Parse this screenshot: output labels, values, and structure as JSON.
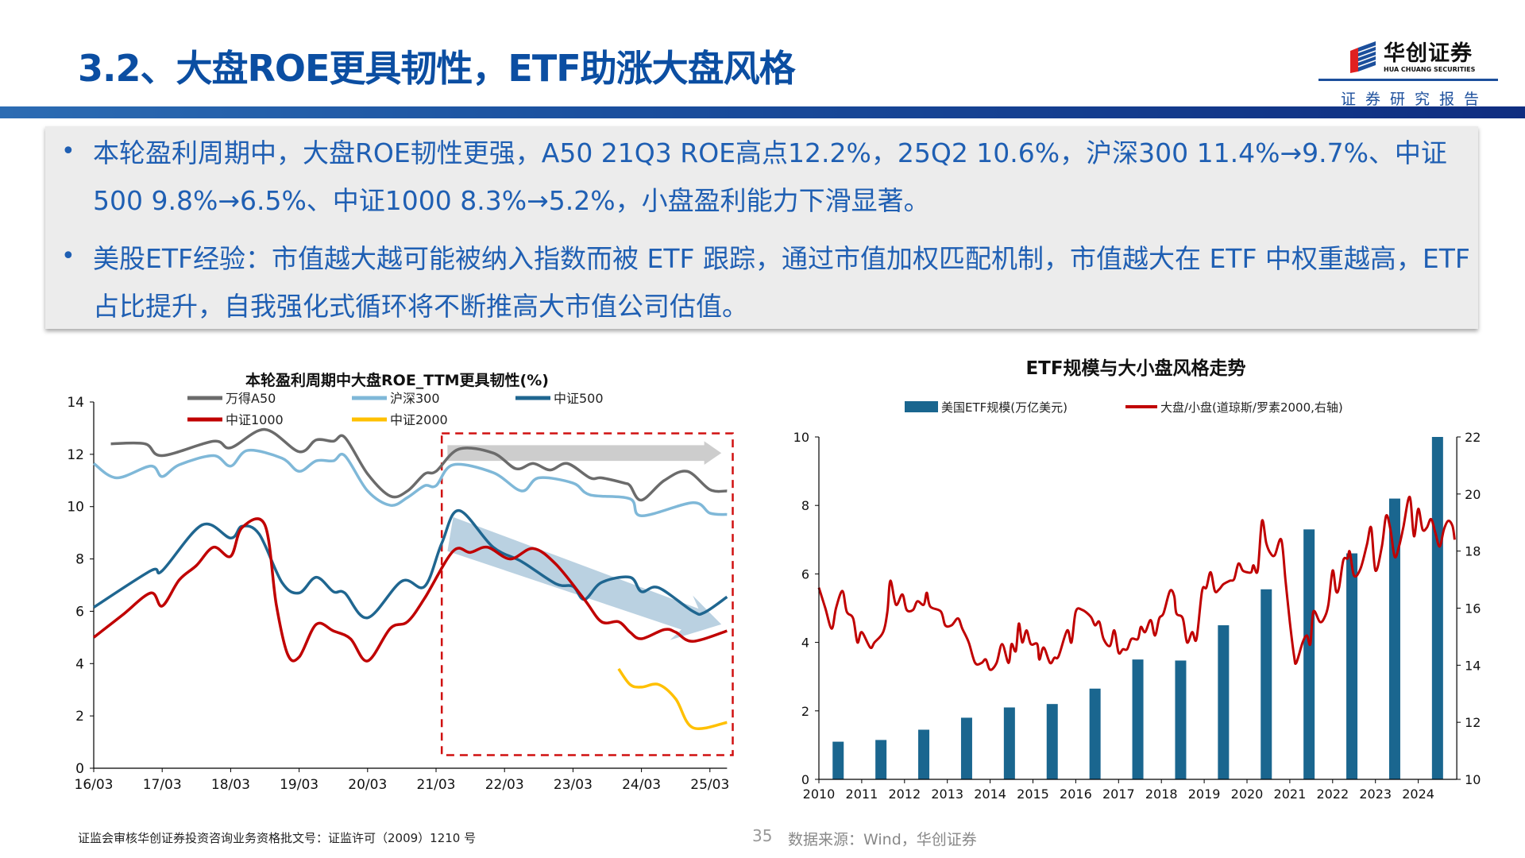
{
  "header": {
    "title": "3.2、大盘ROE更具韧性，ETF助涨大盘风格",
    "logo_cn": "华创证券",
    "logo_en": "HUA CHUANG SECURITIES",
    "report_label": "证券研究报告"
  },
  "summary": {
    "bullets": [
      "本轮盈利周期中，大盘ROE韧性更强，A50 21Q3 ROE高点12.2%，25Q2 10.6%，沪深300 11.4%→9.7%、中证500 9.8%→6.5%、中证1000 8.3%→5.2%，小盘盈利能力下滑显著。",
      "美股ETF经验：市值越大越可能被纳入指数而被 ETF 跟踪，通过市值加权匹配机制，市值越大在 ETF 中权重越高，ETF占比提升，自我强化式循环将不断推高大市值公司估值。"
    ]
  },
  "chart_data": [
    {
      "type": "line",
      "title": "本轮盈利周期中大盘ROE_TTM更具韧性(%)",
      "xlabel": "",
      "ylabel": "",
      "ylim": [
        0,
        14
      ],
      "yticks": [
        "0",
        "2",
        "4",
        "6",
        "8",
        "10",
        "12",
        "14"
      ],
      "xticks": [
        "16/03",
        "17/03",
        "18/03",
        "19/03",
        "20/03",
        "21/03",
        "22/03",
        "23/03",
        "24/03",
        "25/03"
      ],
      "xlim": [
        "2016-03",
        "2025-06"
      ],
      "grid": false,
      "legend": "top",
      "series": [
        {
          "name": "万得A50",
          "color": "#6b6b6b",
          "points": [
            [
              "2016-06",
              12.4
            ],
            [
              "2016-12",
              12.4
            ],
            [
              "2017-03",
              11.95
            ],
            [
              "2017-12",
              12.5
            ],
            [
              "2018-03",
              12.25
            ],
            [
              "2018-09",
              12.95
            ],
            [
              "2019-03",
              12.1
            ],
            [
              "2019-06",
              12.55
            ],
            [
              "2019-09",
              12.5
            ],
            [
              "2019-11",
              12.65
            ],
            [
              "2020-03",
              11.25
            ],
            [
              "2020-07",
              10.4
            ],
            [
              "2020-10",
              10.6
            ],
            [
              "2021-01",
              11.25
            ],
            [
              "2021-03",
              11.35
            ],
            [
              "2021-07",
              12.2
            ],
            [
              "2022-01",
              12.05
            ],
            [
              "2022-05",
              11.45
            ],
            [
              "2022-08",
              11.65
            ],
            [
              "2022-11",
              11.4
            ],
            [
              "2023-02",
              11.65
            ],
            [
              "2023-06",
              11.1
            ],
            [
              "2023-08",
              11.1
            ],
            [
              "2023-12",
              10.9
            ],
            [
              "2024-01",
              10.8
            ],
            [
              "2024-03",
              10.25
            ],
            [
              "2024-07",
              11.0
            ],
            [
              "2024-11",
              11.35
            ],
            [
              "2025-03",
              10.65
            ],
            [
              "2025-06",
              10.6
            ]
          ]
        },
        {
          "name": "沪深300",
          "color": "#7fb8d8",
          "points": [
            [
              "2016-03",
              11.65
            ],
            [
              "2016-07",
              11.1
            ],
            [
              "2017-01",
              11.55
            ],
            [
              "2017-03",
              11.15
            ],
            [
              "2017-06",
              11.6
            ],
            [
              "2017-12",
              11.95
            ],
            [
              "2018-03",
              11.55
            ],
            [
              "2018-06",
              12.15
            ],
            [
              "2018-12",
              11.85
            ],
            [
              "2019-03",
              11.35
            ],
            [
              "2019-06",
              11.75
            ],
            [
              "2019-09",
              11.75
            ],
            [
              "2019-11",
              11.95
            ],
            [
              "2020-03",
              10.6
            ],
            [
              "2020-07",
              10.05
            ],
            [
              "2020-10",
              10.35
            ],
            [
              "2021-01",
              10.8
            ],
            [
              "2021-03",
              10.8
            ],
            [
              "2021-06",
              11.6
            ],
            [
              "2022-01",
              11.3
            ],
            [
              "2022-06",
              10.6
            ],
            [
              "2022-09",
              11.1
            ],
            [
              "2023-03",
              10.9
            ],
            [
              "2023-06",
              10.45
            ],
            [
              "2024-01",
              10.3
            ],
            [
              "2024-03",
              9.65
            ],
            [
              "2024-12",
              10.15
            ],
            [
              "2025-03",
              9.75
            ],
            [
              "2025-06",
              9.7
            ]
          ]
        },
        {
          "name": "中证500",
          "color": "#1f6690",
          "points": [
            [
              "2016-03",
              6.15
            ],
            [
              "2017-01",
              7.55
            ],
            [
              "2017-03",
              7.55
            ],
            [
              "2017-10",
              9.3
            ],
            [
              "2018-03",
              8.8
            ],
            [
              "2018-05",
              9.25
            ],
            [
              "2018-08",
              8.95
            ],
            [
              "2018-12",
              7.1
            ],
            [
              "2019-03",
              6.7
            ],
            [
              "2019-06",
              7.3
            ],
            [
              "2019-09",
              6.75
            ],
            [
              "2019-11",
              6.7
            ],
            [
              "2020-03",
              5.75
            ],
            [
              "2020-09",
              7.15
            ],
            [
              "2021-01",
              6.95
            ],
            [
              "2021-04",
              8.6
            ],
            [
              "2021-07",
              9.85
            ],
            [
              "2022-01",
              8.45
            ],
            [
              "2022-06",
              7.9
            ],
            [
              "2022-12",
              7.05
            ],
            [
              "2023-03",
              6.95
            ],
            [
              "2023-05",
              6.45
            ],
            [
              "2023-08",
              7.1
            ],
            [
              "2024-01",
              7.3
            ],
            [
              "2024-03",
              6.75
            ],
            [
              "2024-06",
              6.9
            ],
            [
              "2024-12",
              6.0
            ],
            [
              "2025-02",
              5.95
            ],
            [
              "2025-06",
              6.55
            ]
          ]
        },
        {
          "name": "中证1000",
          "color": "#c00000",
          "points": [
            [
              "2016-03",
              5.0
            ],
            [
              "2016-08",
              5.85
            ],
            [
              "2017-01",
              6.7
            ],
            [
              "2017-03",
              6.2
            ],
            [
              "2017-06",
              7.2
            ],
            [
              "2017-09",
              7.75
            ],
            [
              "2017-12",
              8.45
            ],
            [
              "2018-03",
              8.1
            ],
            [
              "2018-05",
              9.2
            ],
            [
              "2018-09",
              9.3
            ],
            [
              "2018-11",
              6.25
            ],
            [
              "2019-01",
              4.35
            ],
            [
              "2019-03",
              4.25
            ],
            [
              "2019-06",
              5.5
            ],
            [
              "2019-09",
              5.25
            ],
            [
              "2019-12",
              4.95
            ],
            [
              "2020-03",
              4.1
            ],
            [
              "2020-07",
              5.35
            ],
            [
              "2020-10",
              5.6
            ],
            [
              "2021-01",
              6.5
            ],
            [
              "2021-06",
              8.3
            ],
            [
              "2021-09",
              8.25
            ],
            [
              "2021-12",
              8.45
            ],
            [
              "2022-04",
              8.0
            ],
            [
              "2022-08",
              8.4
            ],
            [
              "2022-12",
              7.8
            ],
            [
              "2023-05",
              6.45
            ],
            [
              "2023-08",
              5.6
            ],
            [
              "2023-11",
              5.6
            ],
            [
              "2024-01",
              5.2
            ],
            [
              "2024-03",
              4.95
            ],
            [
              "2024-07",
              5.3
            ],
            [
              "2024-09",
              5.2
            ],
            [
              "2024-12",
              4.85
            ],
            [
              "2025-06",
              5.25
            ]
          ]
        },
        {
          "name": "中证2000",
          "color": "#ffc000",
          "points": [
            [
              "2023-11",
              3.8
            ],
            [
              "2024-01",
              3.2
            ],
            [
              "2024-03",
              3.1
            ],
            [
              "2024-06",
              3.2
            ],
            [
              "2024-09",
              2.65
            ],
            [
              "2024-12",
              1.55
            ],
            [
              "2025-06",
              1.75
            ]
          ]
        }
      ]
    },
    {
      "type": "bar+line",
      "title": "ETF规模与大小盘风格走势",
      "xlabel": "",
      "ylabel": "",
      "xticks": [
        "2010",
        "2011",
        "2012",
        "2013",
        "2014",
        "2015",
        "2016",
        "2017",
        "2018",
        "2019",
        "2020",
        "2021",
        "2022",
        "2023",
        "2024"
      ],
      "xlim": [
        2010,
        2024.9
      ],
      "ylim": [
        0,
        10
      ],
      "yticks": [
        "0",
        "2",
        "4",
        "6",
        "8",
        "10"
      ],
      "y2lim": [
        10,
        22
      ],
      "y2ticks": [
        "10",
        "12",
        "14",
        "16",
        "18",
        "20",
        "22"
      ],
      "grid": false,
      "legend": "top",
      "bars": {
        "name": "美国ETF规模(万亿美元)",
        "color": "#1a668f",
        "categories": [
          2010,
          2011,
          2012,
          2013,
          2014,
          2015,
          2016,
          2017,
          2018,
          2019,
          2020,
          2021,
          2022,
          2023,
          2024
        ],
        "values": [
          1.1,
          1.15,
          1.45,
          1.8,
          2.1,
          2.2,
          2.65,
          3.5,
          3.47,
          4.5,
          5.55,
          7.3,
          6.6,
          8.2,
          10.0
        ]
      },
      "line": {
        "name": "大盘/小盘(道琼斯/罗素2000,右轴)",
        "color": "#c00000",
        "x": [
          2010.0,
          2010.15,
          2010.3,
          2010.4,
          2010.55,
          2010.65,
          2010.8,
          2010.9,
          2011.0,
          2011.2,
          2011.3,
          2011.5,
          2011.6,
          2011.67,
          2011.8,
          2011.95,
          2012.05,
          2012.2,
          2012.3,
          2012.45,
          2012.52,
          2012.6,
          2012.85,
          2012.95,
          2013.1,
          2013.25,
          2013.35,
          2013.5,
          2013.65,
          2013.8,
          2013.9,
          2014.0,
          2014.15,
          2014.28,
          2014.43,
          2014.5,
          2014.6,
          2014.67,
          2014.75,
          2014.85,
          2014.95,
          2015.1,
          2015.15,
          2015.25,
          2015.4,
          2015.5,
          2015.6,
          2015.8,
          2015.9,
          2016.0,
          2016.15,
          2016.35,
          2016.45,
          2016.55,
          2016.65,
          2016.8,
          2016.9,
          2017.0,
          2017.1,
          2017.2,
          2017.3,
          2017.45,
          2017.52,
          2017.62,
          2017.75,
          2017.85,
          2017.95,
          2018.05,
          2018.2,
          2018.3,
          2018.35,
          2018.5,
          2018.6,
          2018.72,
          2018.82,
          2018.95,
          2019.05,
          2019.15,
          2019.25,
          2019.35,
          2019.45,
          2019.6,
          2019.7,
          2019.8,
          2019.9,
          2020.0,
          2020.1,
          2020.15,
          2020.25,
          2020.35,
          2020.45,
          2020.55,
          2020.65,
          2020.8,
          2020.9,
          2021.0,
          2021.1,
          2021.15,
          2021.3,
          2021.4,
          2021.48,
          2021.55,
          2021.7,
          2021.8,
          2021.9,
          2022.0,
          2022.08,
          2022.15,
          2022.25,
          2022.35,
          2022.4,
          2022.5,
          2022.65,
          2022.8,
          2022.9,
          2023.0,
          2023.15,
          2023.25,
          2023.35,
          2023.45,
          2023.55,
          2023.65,
          2023.8,
          2023.9,
          2024.0,
          2024.1,
          2024.2,
          2024.3,
          2024.4,
          2024.5,
          2024.6,
          2024.7,
          2024.8,
          2024.85
        ],
        "values": [
          16.72,
          16.0,
          15.28,
          16.0,
          16.6,
          15.88,
          15.64,
          14.8,
          15.16,
          14.62,
          14.8,
          15.16,
          15.88,
          16.96,
          16.12,
          16.48,
          15.94,
          15.94,
          16.24,
          16.12,
          16.54,
          16.06,
          15.88,
          15.4,
          15.4,
          15.64,
          15.28,
          14.8,
          14.08,
          14.08,
          14.2,
          13.84,
          14.08,
          14.74,
          14.08,
          14.74,
          14.5,
          15.46,
          14.8,
          15.22,
          14.74,
          14.74,
          14.2,
          14.62,
          14.08,
          14.26,
          14.32,
          15.22,
          14.8,
          15.88,
          15.94,
          15.7,
          15.4,
          15.52,
          14.92,
          14.68,
          15.22,
          14.44,
          14.56,
          14.56,
          14.92,
          14.92,
          15.34,
          15.16,
          15.58,
          15.04,
          15.64,
          15.82,
          16.6,
          16.42,
          15.82,
          15.64,
          14.8,
          15.16,
          14.92,
          16.6,
          16.72,
          17.26,
          16.6,
          16.66,
          16.84,
          16.96,
          17.02,
          17.56,
          17.32,
          17.26,
          17.26,
          17.5,
          17.32,
          19.06,
          18.28,
          17.92,
          17.86,
          18.4,
          16.96,
          15.52,
          14.32,
          14.08,
          14.8,
          15.04,
          14.74,
          15.88,
          15.52,
          15.64,
          16.12,
          17.32,
          16.6,
          16.72,
          17.68,
          17.74,
          17.98,
          17.14,
          17.38,
          18.22,
          18.82,
          17.32,
          18.16,
          19.24,
          18.76,
          17.8,
          18.16,
          18.82,
          19.9,
          18.52,
          19.48,
          18.76,
          18.82,
          19.12,
          18.64,
          18.16,
          18.76,
          19.06,
          18.88,
          18.4
        ]
      }
    }
  ],
  "footer": {
    "license": "证监会审核华创证券投资咨询业务资格批文号：证监许可（2009）1210 号",
    "page_number": "35",
    "source": "数据来源：Wind，华创证券"
  }
}
